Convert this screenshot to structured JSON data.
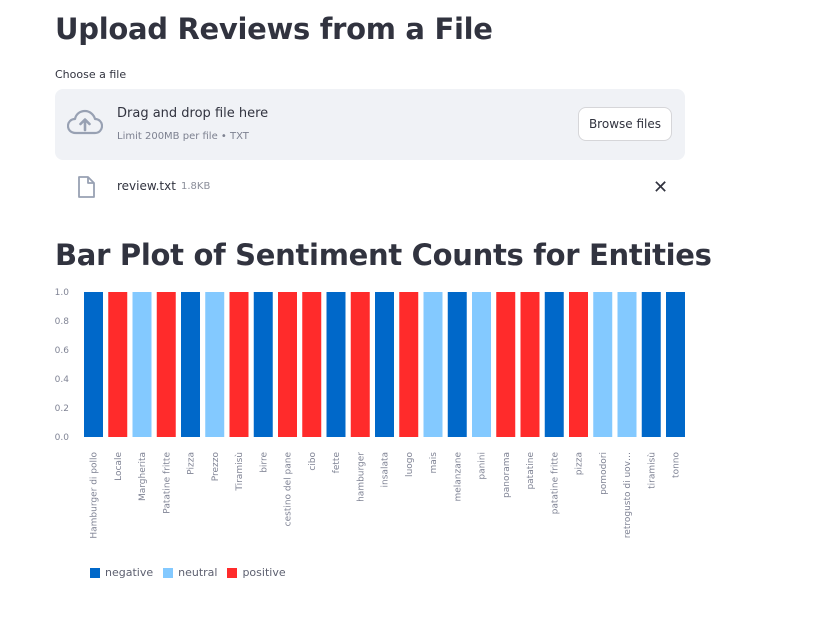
{
  "upload": {
    "title": "Upload Reviews from a File",
    "choose_label": "Choose a file",
    "drop_text": "Drag and drop file here",
    "limit_text": "Limit 200MB per file • TXT",
    "browse_label": "Browse files",
    "file_name": "review.txt",
    "file_size": "1.8KB",
    "remove_glyph": "✕"
  },
  "chart_title": "Bar Plot of Sentiment Counts for Entities",
  "colors": {
    "negative": "#0068c9",
    "neutral": "#83c9ff",
    "positive": "#ff2b2b"
  },
  "chart_data": {
    "type": "bar",
    "categories": [
      "Hamburger di pollo",
      "Locale",
      "Margherita",
      "Patatine fritte",
      "Pizza",
      "Prezzo",
      "Tiramisù",
      "birre",
      "cestino del pane",
      "cibo",
      "fette",
      "hamburger",
      "insalata",
      "luogo",
      "mais",
      "melanzane",
      "panini",
      "panorama",
      "patatine",
      "patatine fritte",
      "pizza",
      "pomodori",
      "retrogusto di uov…",
      "tiramisù",
      "tonno"
    ],
    "sentiments": [
      "negative",
      "positive",
      "neutral",
      "positive",
      "negative",
      "neutral",
      "positive",
      "negative",
      "positive",
      "positive",
      "negative",
      "positive",
      "negative",
      "positive",
      "neutral",
      "negative",
      "neutral",
      "positive",
      "positive",
      "negative",
      "positive",
      "neutral",
      "neutral",
      "negative",
      "negative"
    ],
    "values": [
      1,
      1,
      1,
      1,
      1,
      1,
      1,
      1,
      1,
      1,
      1,
      1,
      1,
      1,
      1,
      1,
      1,
      1,
      1,
      1,
      1,
      1,
      1,
      1,
      1
    ],
    "ylim": [
      0,
      1
    ],
    "yticks": [
      "0.0",
      "0.2",
      "0.4",
      "0.6",
      "0.8",
      "1.0"
    ],
    "legend": [
      "negative",
      "neutral",
      "positive"
    ],
    "legend_position": "bottom-left",
    "title": "",
    "xlabel": "",
    "ylabel": ""
  }
}
